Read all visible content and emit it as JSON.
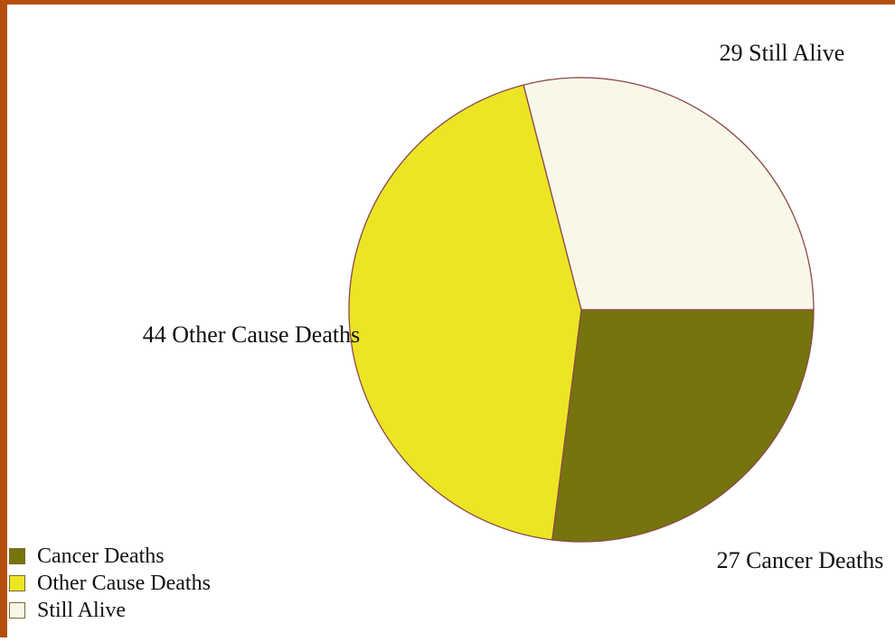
{
  "chart_data": {
    "type": "pie",
    "categories": [
      "Cancer Deaths",
      "Other Cause Deaths",
      "Still Alive"
    ],
    "values": [
      27,
      44,
      29
    ],
    "slice_labels": [
      "27 Cancer Deaths",
      "44 Other Cause Deaths",
      "29 Still Alive"
    ],
    "colors": [
      "#76740c",
      "#ece524",
      "#f9f8e8"
    ],
    "outline_color": "#8b4a4a",
    "frame_color": "#b54e0c",
    "legend_position": "bottom-left"
  }
}
